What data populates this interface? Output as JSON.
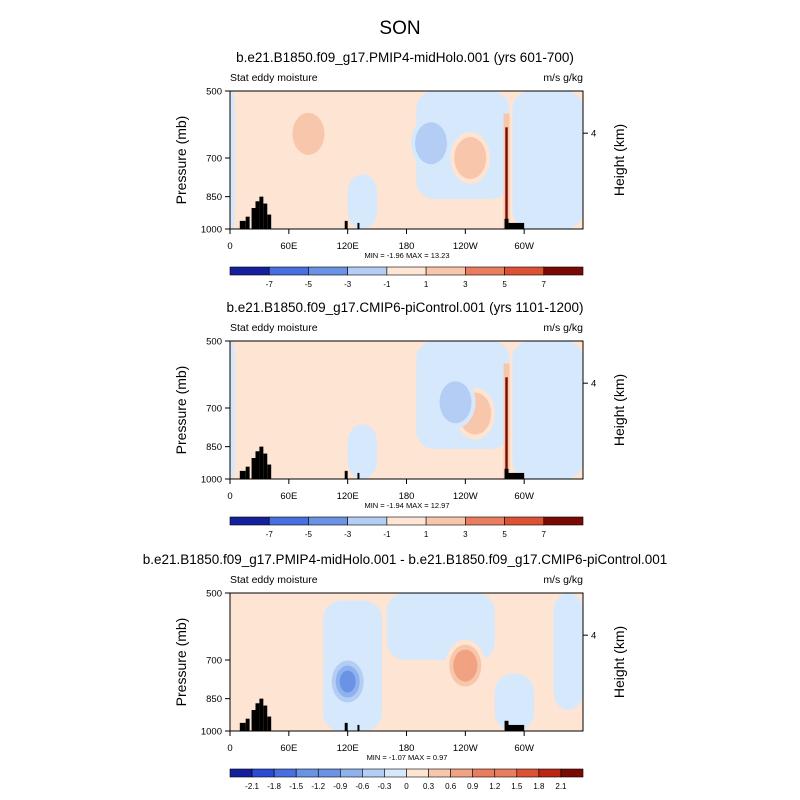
{
  "figure_title": "SON",
  "chart_data": [
    {
      "type": "heatmap",
      "title": "b.e21.B1850.f09_g17.PMIP4-midHolo.001 (yrs 601-700)",
      "left_label": "Stat eddy moisture",
      "right_label": "m/s g/kg",
      "ylabel": "Pressure (mb)",
      "ylabel_right": "Height (km)",
      "yticks": [
        "500",
        "700",
        "850",
        "1000"
      ],
      "yticks_right": [
        "4"
      ],
      "xticks": [
        "0",
        "60E",
        "120E",
        "180",
        "120W",
        "60W"
      ],
      "stats": "MIN =  -1.96  MAX =  13.23",
      "colorbar_ticks": [
        "-7",
        "-5",
        "-3",
        "-1",
        "1",
        "3",
        "5",
        "7"
      ],
      "features": [
        {
          "name": "warm-band-east-pacific",
          "sign": "positive",
          "level": 2,
          "lon": 245,
          "p": 700
        },
        {
          "name": "cool-blob-central-pacific",
          "sign": "negative",
          "level": 2,
          "lon": 205,
          "p": 650
        },
        {
          "name": "spike-andes",
          "sign": "positive",
          "level": 7,
          "lon": 282,
          "p": 800
        },
        {
          "name": "warm-patch-indian",
          "sign": "positive",
          "level": 2,
          "lon": 80,
          "p": 620
        }
      ]
    },
    {
      "type": "heatmap",
      "title": "b.e21.B1850.f09_g17.CMIP6-piControl.001 (yrs 1101-1200)",
      "left_label": "Stat eddy moisture",
      "right_label": "m/s g/kg",
      "ylabel": "Pressure (mb)",
      "ylabel_right": "Height (km)",
      "yticks": [
        "500",
        "700",
        "850",
        "1000"
      ],
      "yticks_right": [
        "4"
      ],
      "xticks": [
        "0",
        "60E",
        "120E",
        "180",
        "120W",
        "60W"
      ],
      "stats": "MIN =  -1.94  MAX =  12.97",
      "colorbar_ticks": [
        "-7",
        "-5",
        "-3",
        "-1",
        "1",
        "3",
        "5",
        "7"
      ],
      "features": [
        {
          "name": "warm-band-east-pacific",
          "sign": "positive",
          "level": 2,
          "lon": 250,
          "p": 720
        },
        {
          "name": "cool-blob-central-pacific",
          "sign": "negative",
          "level": 2,
          "lon": 230,
          "p": 680
        },
        {
          "name": "spike-andes",
          "sign": "positive",
          "level": 7,
          "lon": 282,
          "p": 800
        }
      ]
    },
    {
      "type": "heatmap",
      "title": "b.e21.B1850.f09_g17.PMIP4-midHolo.001 - b.e21.B1850.f09_g17.CMIP6-piControl.001",
      "left_label": "Stat eddy moisture",
      "right_label": "m/s g/kg",
      "ylabel": "Pressure (mb)",
      "ylabel_right": "Height (km)",
      "yticks": [
        "500",
        "700",
        "850",
        "1000"
      ],
      "yticks_right": [
        "4"
      ],
      "xticks": [
        "0",
        "60E",
        "120E",
        "180",
        "120W",
        "60W"
      ],
      "stats": "MIN =  -1.07  MAX =   0.97",
      "colorbar_ticks": [
        "-2.1",
        "-1.8",
        "-1.5",
        "-1.2",
        "-0.9",
        "-0.6",
        "-0.3",
        "0",
        "0.3",
        "0.6",
        "0.9",
        "1.2",
        "1.5",
        "1.8",
        "2.1"
      ],
      "features": [
        {
          "name": "cool-core-west-pacific",
          "sign": "negative",
          "level": 4,
          "lon": 120,
          "p": 780
        },
        {
          "name": "warm-core-east-pacific",
          "sign": "positive",
          "level": 3,
          "lon": 240,
          "p": 720
        },
        {
          "name": "warm-patch-indian",
          "sign": "positive",
          "level": 1,
          "lon": 75,
          "p": 700
        }
      ]
    }
  ],
  "colors": {
    "neg": [
      "#d6e8fb",
      "#b3cdf5",
      "#8eb2ee",
      "#6a93e6",
      "#476fdf",
      "#2a4bd4",
      "#14209e"
    ],
    "pos": [
      "#fde4d3",
      "#f8c6aa",
      "#f1a282",
      "#ea7d5d",
      "#dd5234",
      "#bb2713",
      "#7a0a04"
    ],
    "terrain": "#000000"
  }
}
